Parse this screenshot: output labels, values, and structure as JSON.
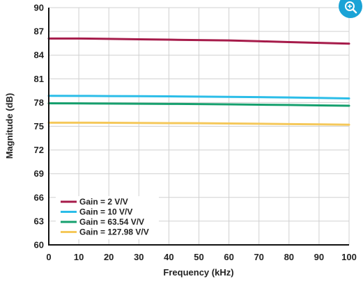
{
  "chart_data": {
    "type": "line",
    "title": "",
    "xlabel": "Frequency (kHz)",
    "ylabel": "Magnitude (dB)",
    "xlim": [
      0,
      100
    ],
    "ylim": [
      60,
      90
    ],
    "xticks": [
      "0",
      "10",
      "20",
      "30",
      "40",
      "50",
      "60",
      "70",
      "80",
      "90",
      "100"
    ],
    "yticks": [
      "60",
      "63",
      "66",
      "69",
      "72",
      "75",
      "78",
      "81",
      "84",
      "87",
      "90"
    ],
    "grid": true,
    "legend_position": "bottom-left",
    "x": [
      0,
      10,
      20,
      30,
      40,
      50,
      60,
      70,
      80,
      90,
      100
    ],
    "series": [
      {
        "name": "Gain = 2 V/V",
        "color": "#a61b4a",
        "values": [
          86.1,
          86.1,
          86.05,
          86.0,
          85.95,
          85.9,
          85.85,
          85.75,
          85.65,
          85.55,
          85.45
        ]
      },
      {
        "name": "Gain = 10 V/V",
        "color": "#2bbde8",
        "values": [
          78.85,
          78.84,
          78.82,
          78.8,
          78.78,
          78.75,
          78.72,
          78.68,
          78.64,
          78.58,
          78.52
        ]
      },
      {
        "name": "Gain = 63.54 V/V",
        "color": "#16a06e",
        "values": [
          77.9,
          77.89,
          77.87,
          77.85,
          77.83,
          77.8,
          77.77,
          77.73,
          77.69,
          77.64,
          77.6
        ]
      },
      {
        "name": "Gain = 127.98 V/V",
        "color": "#f5c85a",
        "values": [
          75.45,
          75.45,
          75.44,
          75.42,
          75.4,
          75.38,
          75.35,
          75.32,
          75.28,
          75.24,
          75.2
        ]
      }
    ]
  },
  "ui": {
    "zoom_icon": "zoom-in-icon",
    "accent_color": "#1aa3d6"
  }
}
